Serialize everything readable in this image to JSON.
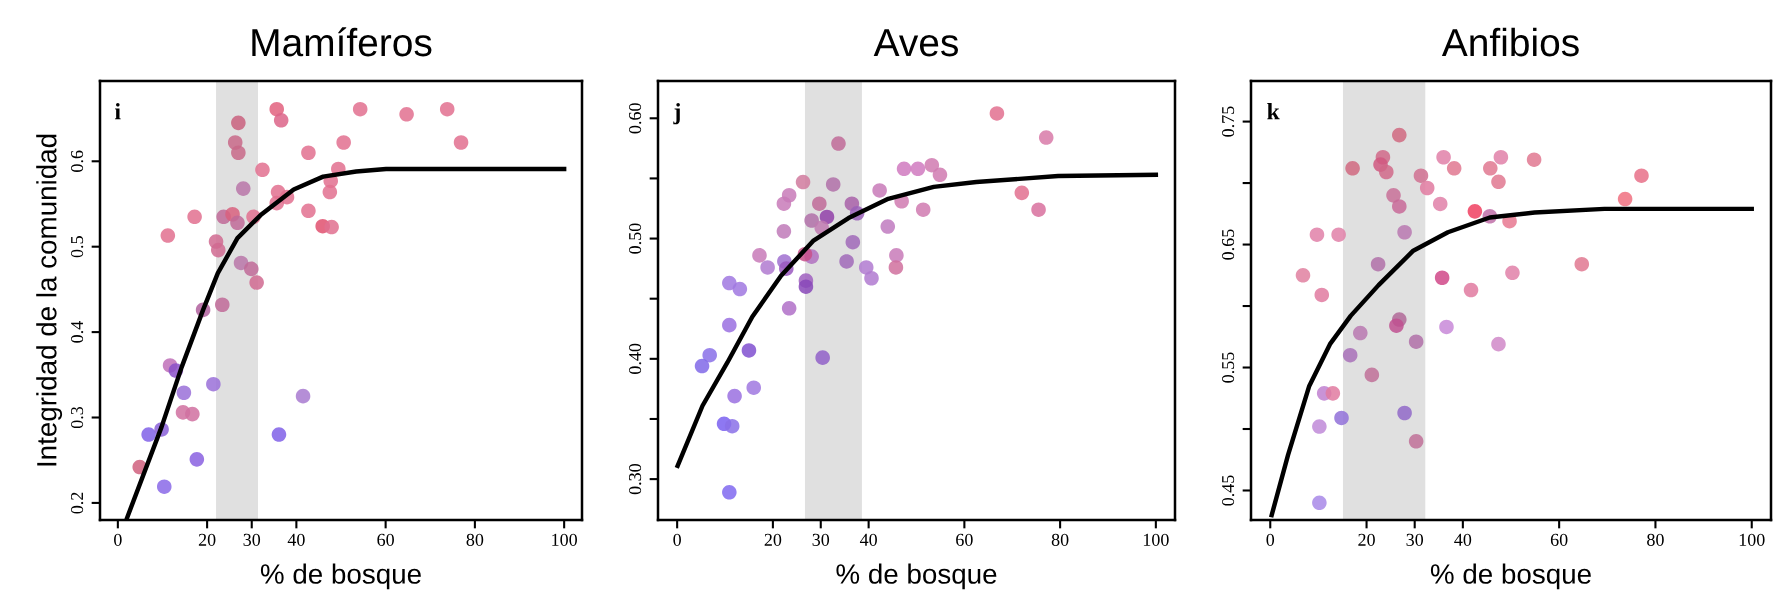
{
  "chart_data": [
    {
      "type": "scatter",
      "title": "Mamíferos",
      "xlabel": "% de bosque",
      "ylabel": "Integridad de la comunidad",
      "annotations": [
        "i"
      ],
      "xlim": [
        -4,
        104
      ],
      "xticks": [
        0,
        20,
        30,
        40,
        60,
        80,
        100
      ],
      "ylim": [
        0.18,
        0.694
      ],
      "yticks": [
        0.2,
        0.3,
        0.4,
        0.5,
        0.6
      ],
      "bands": [
        {
          "axis": "x",
          "from": 22,
          "to": 31.4,
          "color": "#e0e0e0"
        }
      ],
      "series": [
        {
          "marker": "circle",
          "x": [
            35.6,
            36.6,
            27.0,
            26.3,
            27.0,
            54.3,
            64.7,
            73.8,
            76.9,
            50.6,
            42.7,
            32.4,
            49.4,
            47.7,
            47.5,
            28.1,
            35.9,
            37.9,
            35.6,
            42.7,
            17.2,
            23.7,
            25.7,
            26.8,
            30.4,
            45.9,
            47.9,
            11.2,
            22.0,
            22.5,
            27.6,
            29.9,
            31.1,
            23.4,
            19.1,
            11.7,
            13.0,
            21.4,
            41.5,
            14.8,
            14.6,
            16.7,
            6.9,
            9.8,
            36.1,
            17.7,
            4.9,
            10.4
          ],
          "values": [
            0.661,
            0.648,
            0.645,
            0.622,
            0.61,
            0.661,
            0.655,
            0.661,
            0.622,
            0.622,
            0.61,
            0.59,
            0.591,
            0.577,
            0.564,
            0.568,
            0.564,
            0.558,
            0.551,
            0.542,
            0.535,
            0.535,
            0.538,
            0.528,
            0.535,
            0.524,
            0.523,
            0.513,
            0.506,
            0.496,
            0.481,
            0.474,
            0.458,
            0.432,
            0.426,
            0.361,
            0.355,
            0.339,
            0.325,
            0.329,
            0.306,
            0.304,
            0.28,
            0.286,
            0.28,
            0.251,
            0.242,
            0.219
          ],
          "colors": [
            "#e2607e",
            "#dc6488",
            "#c9607e",
            "#c86888",
            "#c86888",
            "#e2708f",
            "#e2708f",
            "#e2708f",
            "#e2708f",
            "#e2708f",
            "#e2708f",
            "#e2708f",
            "#e2708f",
            "#e2708f",
            "#e2708f",
            "#b875a8",
            "#e2708f",
            "#e2708f",
            "#e2708f",
            "#e2708f",
            "#e2708f",
            "#c06a98",
            "#d8607e",
            "#c06a98",
            "#e2708f",
            "#e0506e",
            "#e0708f",
            "#e2708f",
            "#d06a90",
            "#d06a90",
            "#b875a8",
            "#c06a98",
            "#d06a90",
            "#c06a98",
            "#b0609e",
            "#c070b8",
            "#8a50c8",
            "#9a70d8",
            "#a87ad0",
            "#9a70d8",
            "#d070a0",
            "#d070a0",
            "#8060e8",
            "#8a60d8",
            "#8060e8",
            "#8a60e0",
            "#d0607e",
            "#8a68e8"
          ]
        },
        {
          "type": "line",
          "color": "#000000",
          "x": [
            2.1,
            9.8,
            14.3,
            19.1,
            22.4,
            26.8,
            32.0,
            39.4,
            46.0,
            53.4,
            60.1,
            100
          ],
          "values": [
            0.183,
            0.289,
            0.359,
            0.426,
            0.469,
            0.51,
            0.537,
            0.567,
            0.582,
            0.588,
            0.591,
            0.591
          ]
        }
      ]
    },
    {
      "type": "scatter",
      "title": "Aves",
      "xlabel": "% de bosque",
      "annotations": [
        "j"
      ],
      "xlim": [
        -4,
        104
      ],
      "xticks": [
        0,
        20,
        30,
        40,
        60,
        80,
        100
      ],
      "ylim": [
        0.266,
        0.631
      ],
      "yticks": [
        {
          "value": 0.3,
          "label": "0.30"
        },
        {
          "value": 0.35,
          "label": null
        },
        {
          "value": 0.4,
          "label": "0.40"
        },
        {
          "value": 0.45,
          "label": null
        },
        {
          "value": 0.5,
          "label": "0.50"
        },
        {
          "value": 0.55,
          "label": null
        },
        {
          "value": 0.6,
          "label": "0.60"
        }
      ],
      "bands": [
        {
          "axis": "x",
          "from": 26.7,
          "to": 38.6,
          "color": "#e0e0e0"
        }
      ],
      "series": [
        {
          "marker": "circle",
          "x": [
            66.8,
            77.1,
            33.7,
            47.4,
            50.3,
            53.2,
            54.9,
            26.3,
            32.6,
            42.3,
            72.0,
            23.4,
            22.3,
            29.7,
            36.5,
            46.9,
            75.5,
            51.4,
            31.3,
            28.1,
            37.6,
            30.2,
            44.0,
            22.3,
            36.7,
            17.2,
            28.1,
            26.7,
            22.4,
            18.9,
            22.8,
            35.4,
            39.5,
            45.8,
            45.7,
            40.6,
            10.9,
            13.1,
            26.9,
            26.9,
            23.4,
            10.9,
            6.8,
            5.2,
            15.0,
            30.4,
            16.0,
            12.0,
            9.8,
            11.5,
            10.9
          ],
          "values": [
            0.604,
            0.584,
            0.579,
            0.558,
            0.558,
            0.561,
            0.553,
            0.547,
            0.545,
            0.54,
            0.538,
            0.536,
            0.529,
            0.529,
            0.529,
            0.531,
            0.524,
            0.524,
            0.518,
            0.515,
            0.521,
            0.509,
            0.51,
            0.506,
            0.497,
            0.486,
            0.485,
            0.487,
            0.481,
            0.476,
            0.475,
            0.481,
            0.476,
            0.486,
            0.476,
            0.467,
            0.463,
            0.458,
            0.465,
            0.46,
            0.442,
            0.428,
            0.403,
            0.394,
            0.407,
            0.401,
            0.376,
            0.369,
            0.346,
            0.344,
            0.289
          ],
          "colors": [
            "#e2708f",
            "#d87aa8",
            "#c06a98",
            "#d07ac0",
            "#d07ac0",
            "#d07ab0",
            "#d07ab0",
            "#d07a9e",
            "#b070a8",
            "#c87ab8",
            "#e2708f",
            "#c87ab8",
            "#c87ab8",
            "#c06a98",
            "#a860a8",
            "#d07ab0",
            "#d8709e",
            "#d07ab0",
            "#9040a8",
            "#b070a8",
            "#9a60b8",
            "#c07ab0",
            "#c07ac0",
            "#c07ab8",
            "#a068b8",
            "#c87ab8",
            "#b070c0",
            "#c8508a",
            "#a070d0",
            "#b07ad0",
            "#9a58c0",
            "#a068b8",
            "#b07ad0",
            "#c87ab8",
            "#d0709e",
            "#b07ad0",
            "#a078e0",
            "#a078e0",
            "#a060c0",
            "#8848b8",
            "#b070c8",
            "#9a70e0",
            "#8a70e8",
            "#8068e8",
            "#8050d0",
            "#9060c8",
            "#a078e0",
            "#9a70e0",
            "#7a60f0",
            "#8a70e8",
            "#8068f0"
          ]
        },
        {
          "type": "line",
          "color": "#000000",
          "x": [
            0.1,
            5.3,
            10.5,
            15.7,
            21.7,
            28.4,
            35.8,
            44.1,
            53.6,
            62.5,
            79.6,
            100
          ],
          "values": [
            0.311,
            0.361,
            0.397,
            0.435,
            0.469,
            0.498,
            0.517,
            0.533,
            0.543,
            0.547,
            0.552,
            0.553
          ]
        }
      ]
    },
    {
      "type": "scatter",
      "title": "Anfibios",
      "xlabel": "% de bosque",
      "annotations": [
        "k"
      ],
      "xlim": [
        -4,
        104
      ],
      "xticks": [
        0,
        20,
        30,
        40,
        60,
        80,
        100
      ],
      "ylim": [
        0.426,
        0.783
      ],
      "yticks": [
        {
          "value": 0.45,
          "label": "0.45"
        },
        {
          "value": 0.5,
          "label": null
        },
        {
          "value": 0.55,
          "label": "0.55"
        },
        {
          "value": 0.6,
          "label": null
        },
        {
          "value": 0.65,
          "label": "0.65"
        },
        {
          "value": 0.7,
          "label": null
        },
        {
          "value": 0.75,
          "label": "0.75"
        }
      ],
      "bands": [
        {
          "axis": "x",
          "from": 15.1,
          "to": 32.2,
          "color": "#e0e0e0"
        }
      ],
      "series": [
        {
          "marker": "circle",
          "x": [
            26.8,
            23.4,
            17.1,
            22.9,
            24.1,
            36.0,
            38.2,
            47.9,
            54.8,
            45.7,
            47.4,
            31.3,
            32.6,
            77.1,
            25.6,
            26.8,
            35.3,
            73.7,
            42.5,
            45.6,
            49.7,
            9.7,
            14.2,
            27.9,
            22.4,
            64.7,
            6.8,
            35.7,
            50.3,
            10.7,
            41.7,
            26.8,
            26.2,
            36.6,
            18.7,
            30.3,
            47.4,
            16.6,
            21.1,
            11.2,
            13.0,
            14.8,
            27.9,
            10.2,
            30.3,
            10.2
          ],
          "values": [
            0.739,
            0.721,
            0.712,
            0.715,
            0.709,
            0.721,
            0.712,
            0.721,
            0.719,
            0.712,
            0.701,
            0.706,
            0.696,
            0.706,
            0.69,
            0.681,
            0.683,
            0.687,
            0.677,
            0.673,
            0.669,
            0.658,
            0.658,
            0.66,
            0.634,
            0.634,
            0.625,
            0.623,
            0.627,
            0.609,
            0.613,
            0.589,
            0.584,
            0.583,
            0.578,
            0.571,
            0.569,
            0.56,
            0.544,
            0.529,
            0.529,
            0.509,
            0.513,
            0.502,
            0.49,
            0.44
          ],
          "colors": [
            "#d06880",
            "#d06888",
            "#d06880",
            "#d05880",
            "#d06888",
            "#e080a8",
            "#e07890",
            "#e080a8",
            "#e07890",
            "#e07890",
            "#e07890",
            "#d07090",
            "#e07aa0",
            "#e87088",
            "#c87098",
            "#c86898",
            "#e080a8",
            "#f07080",
            "#f04060",
            "#c070a8",
            "#e87890",
            "#e080a8",
            "#e080a8",
            "#b878b0",
            "#b070a8",
            "#e07890",
            "#e080a0",
            "#d04888",
            "#e080a8",
            "#e07aa0",
            "#e07aa0",
            "#b06898",
            "#c05090",
            "#c888d8",
            "#b878b0",
            "#b070a8",
            "#d088c8",
            "#a870b8",
            "#c07098",
            "#c080d0",
            "#e07aa0",
            "#9070d8",
            "#9068c8",
            "#c08ad8",
            "#c07098",
            "#a888e8"
          ]
        },
        {
          "type": "line",
          "color": "#000000",
          "x": [
            0.3,
            3.7,
            8.1,
            12.4,
            16.7,
            22.5,
            29.7,
            36.9,
            45.6,
            54.9,
            69.4,
            100
          ],
          "values": [
            0.43,
            0.479,
            0.535,
            0.569,
            0.592,
            0.617,
            0.645,
            0.66,
            0.672,
            0.676,
            0.679,
            0.679
          ]
        }
      ]
    }
  ]
}
